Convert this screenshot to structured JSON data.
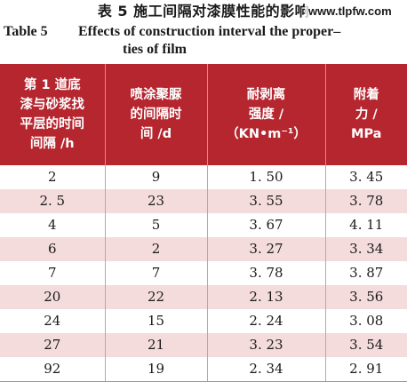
{
  "caption_cn": "表 5    施工间隔对漆膜性能的影响",
  "watermark": "www.tlpfw.com",
  "caption_en": {
    "label": "Table 5",
    "title_line1": "Effects of construction interval the proper–",
    "title_line2": "ties of film"
  },
  "table": {
    "headers": [
      [
        "第 1 道底",
        "漆与砂浆找",
        "平层的时间",
        "间隔 /h"
      ],
      [
        "喷涂聚脲",
        "的间隔时",
        "间 /d"
      ],
      [
        "耐剥离",
        "强度 /",
        "（KN•m⁻¹）"
      ],
      [
        "附着",
        "力 /",
        "MPa"
      ]
    ],
    "rows": [
      [
        "2",
        "9",
        "1. 50",
        "3. 45"
      ],
      [
        "2. 5",
        "23",
        "3. 55",
        "3. 78"
      ],
      [
        "4",
        "5",
        "3. 67",
        "4. 11"
      ],
      [
        "6",
        "2",
        "3. 27",
        "3. 34"
      ],
      [
        "7",
        "7",
        "3. 78",
        "3. 87"
      ],
      [
        "20",
        "22",
        "2. 13",
        "3. 56"
      ],
      [
        "24",
        "15",
        "2. 24",
        "3. 08"
      ],
      [
        "27",
        "21",
        "3. 23",
        "3. 54"
      ],
      [
        "92",
        "19",
        "2. 34",
        "2. 91"
      ]
    ]
  },
  "colors": {
    "header_bg": "#b5262f",
    "stripe_bg": "#f4dcdd"
  }
}
